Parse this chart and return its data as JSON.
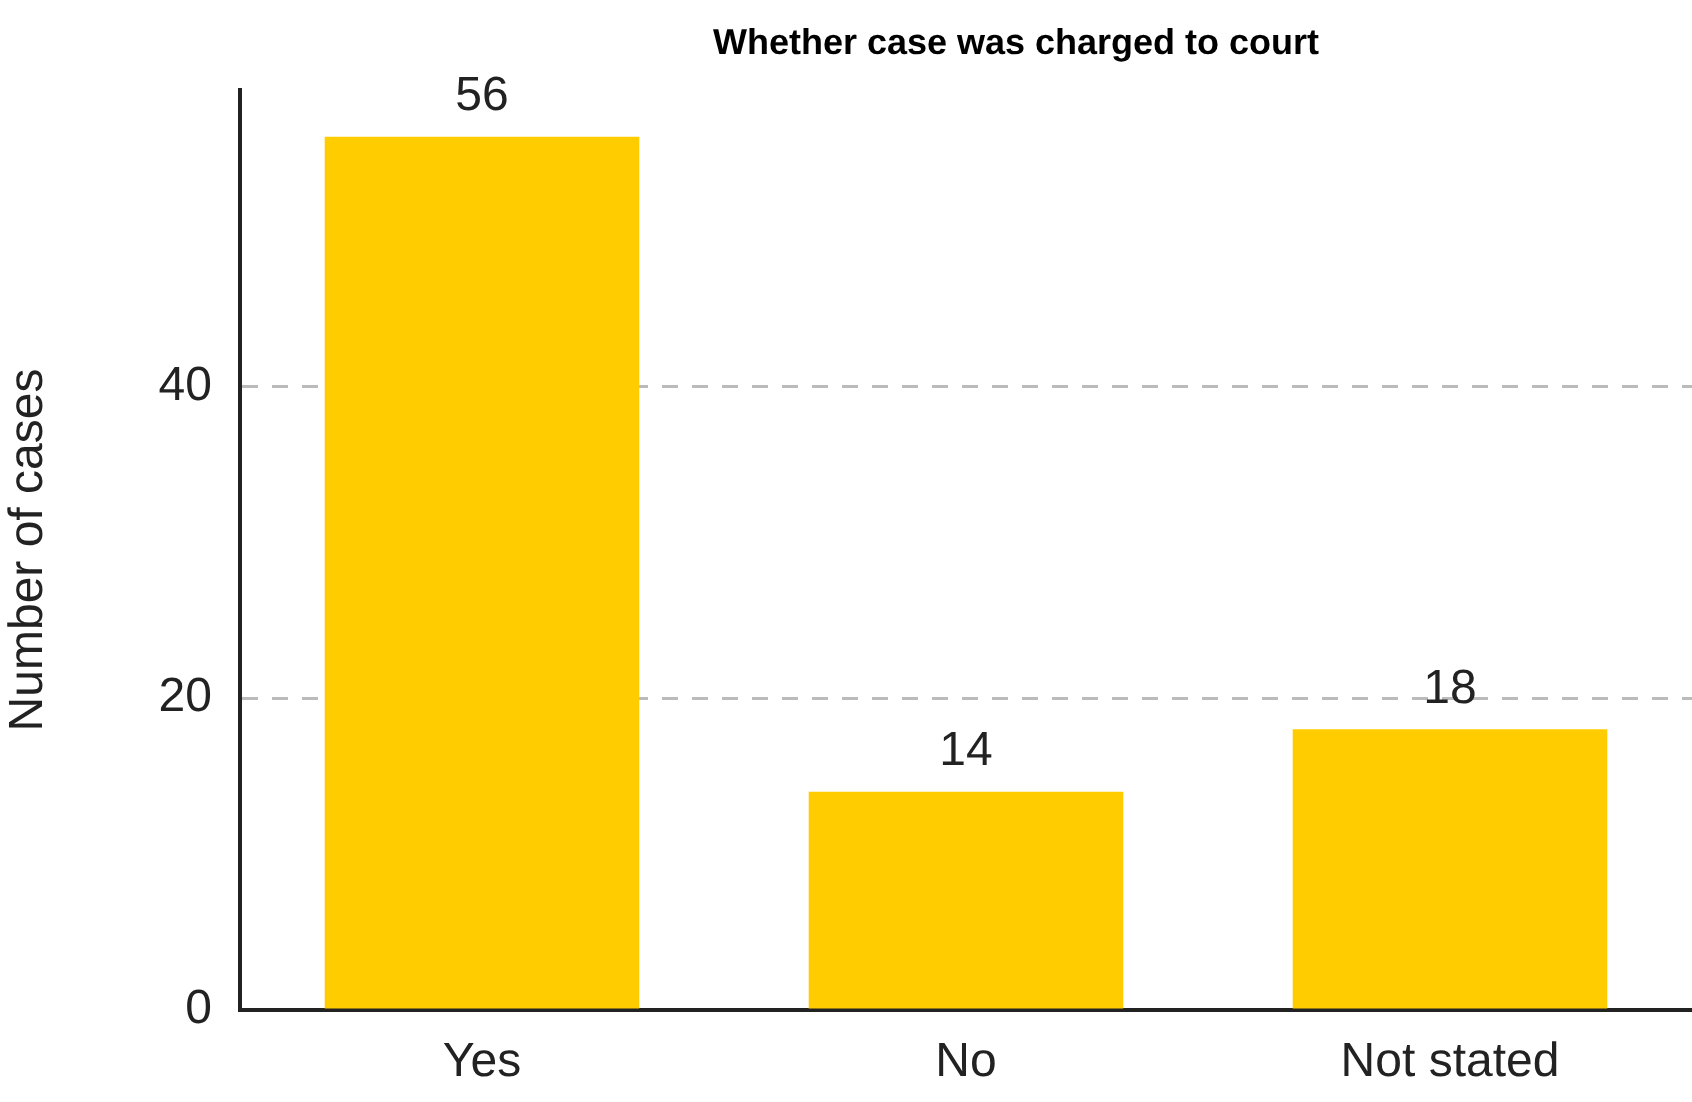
{
  "chart_data": {
    "type": "bar",
    "title": "Whether case was charged to court",
    "ylabel": "Number of cases",
    "categories": [
      "Yes",
      "No",
      "Not stated"
    ],
    "values": [
      56,
      14,
      18
    ],
    "color": "#ffcc00",
    "ylim": [
      0,
      59
    ],
    "yticks": [
      0,
      20,
      40
    ],
    "grid": "y",
    "data_labels": true
  }
}
